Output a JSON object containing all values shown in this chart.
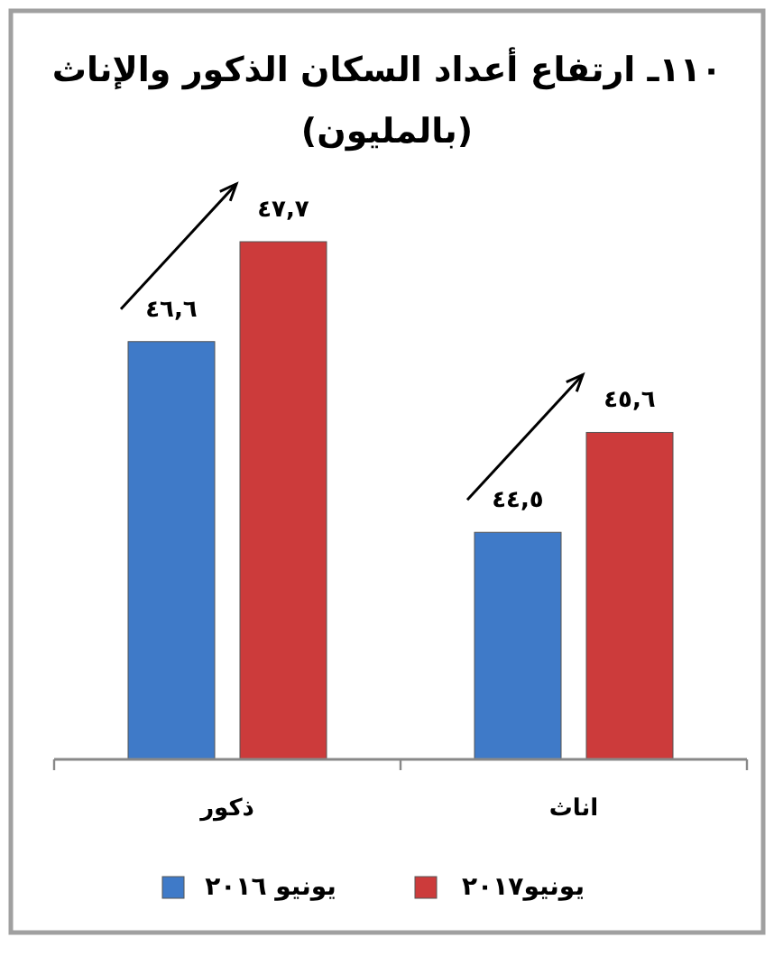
{
  "chart_data": {
    "type": "bar",
    "title": "١١٠ـ ارتفاع أعداد السكان الذكور والإناث (بالمليون)",
    "categories": [
      "ذكور",
      "اناث"
    ],
    "series": [
      {
        "name": "يونيو ٢٠١٦",
        "color": "#3f7ac8",
        "values": [
          46.6,
          44.5
        ],
        "value_labels": [
          "٤٦,٦",
          "٤٤,٥"
        ]
      },
      {
        "name": "يونيو٢٠١٧",
        "color": "#cc3b3b",
        "values": [
          47.7,
          45.6
        ],
        "value_labels": [
          "٤٧,٧",
          "٤٥,٦"
        ]
      }
    ],
    "ylim": [
      42,
      47.7
    ],
    "legend": "bottom"
  }
}
